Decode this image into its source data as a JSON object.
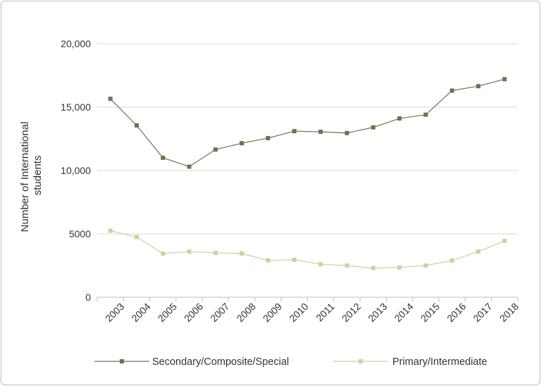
{
  "chart_data": {
    "type": "line",
    "categories": [
      "2003",
      "2004",
      "2005",
      "2006",
      "2007",
      "2008",
      "2009",
      "2010",
      "2011",
      "2012",
      "2013",
      "2014",
      "2015",
      "2016",
      "2017",
      "2018"
    ],
    "series": [
      {
        "name": "Secondary/Composite/Special",
        "color": "#726f4f",
        "values": [
          15650,
          13550,
          11000,
          10300,
          11650,
          12150,
          12550,
          13100,
          13050,
          12950,
          13400,
          14100,
          14400,
          16300,
          16650,
          17200
        ]
      },
      {
        "name": "Primary/Intermediate",
        "color": "#c3d69b",
        "values": [
          5250,
          4750,
          3450,
          3600,
          3500,
          3450,
          2900,
          2950,
          2600,
          2500,
          2300,
          2350,
          2500,
          2900,
          3600,
          4450
        ]
      }
    ],
    "ylabel_lines": [
      "Number of International",
      "students"
    ],
    "ylim": [
      0,
      20000
    ],
    "yticks": [
      0,
      5000,
      10000,
      15000,
      20000
    ],
    "ytick_labels": [
      "0",
      "5000",
      "10,000",
      "15,000",
      "20,000"
    ],
    "grid": true,
    "legend": "bottom"
  }
}
